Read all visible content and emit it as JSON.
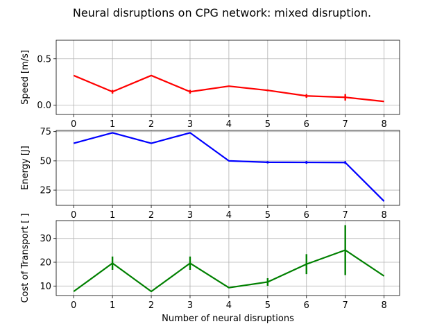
{
  "figure": {
    "title": "Neural disruptions on CPG network: mixed disruption."
  },
  "chart_data": [
    {
      "type": "line",
      "ylabel": "Speed [m/s]",
      "x": [
        0,
        1,
        2,
        3,
        4,
        5,
        6,
        7,
        8
      ],
      "xticks": [
        "0",
        "1",
        "2",
        "3",
        "4",
        "5",
        "6",
        "7",
        "8"
      ],
      "xlim": [
        -0.45,
        8.4
      ],
      "ylim": [
        -0.1,
        0.7
      ],
      "yticks": [
        0.0,
        0.5
      ],
      "ytick_labels": [
        "0.0",
        "0.5"
      ],
      "grid": true,
      "color": "#ff0000",
      "values": [
        0.32,
        0.145,
        0.32,
        0.145,
        0.205,
        0.16,
        0.1,
        0.085,
        0.04
      ],
      "errors": [
        0.0,
        0.02,
        0.0,
        0.02,
        0.0,
        0.01,
        0.02,
        0.035,
        0.0
      ]
    },
    {
      "type": "line",
      "ylabel": "Energy [J]",
      "x": [
        0,
        1,
        2,
        3,
        4,
        5,
        6,
        7,
        8
      ],
      "xticks": [
        "0",
        "1",
        "2",
        "3",
        "4",
        "5",
        "6",
        "7",
        "8"
      ],
      "xlim": [
        -0.45,
        8.4
      ],
      "ylim": [
        12,
        76
      ],
      "yticks": [
        25,
        50,
        75
      ],
      "ytick_labels": [
        "25",
        "50",
        "75"
      ],
      "grid": true,
      "color": "#0000ff",
      "values": [
        65,
        74,
        65,
        74,
        50,
        48.8,
        48.7,
        48.6,
        15.5
      ],
      "errors": [
        0,
        0,
        0,
        0,
        0,
        1,
        1.2,
        1.2,
        0
      ]
    },
    {
      "type": "line",
      "ylabel": "Cost of Transport [ ]",
      "xlabel": "Number of neural disruptions",
      "x": [
        0,
        1,
        2,
        3,
        4,
        5,
        6,
        7,
        8
      ],
      "xticks": [
        "0",
        "1",
        "2",
        "3",
        "4",
        "5",
        "6",
        "7",
        "8"
      ],
      "xlim": [
        -0.45,
        8.4
      ],
      "ylim": [
        6,
        37.5
      ],
      "yticks": [
        10,
        20,
        30
      ],
      "ytick_labels": [
        "10",
        "20",
        "30"
      ],
      "grid": true,
      "color": "#008000",
      "values": [
        7.7,
        19.6,
        7.7,
        19.6,
        9.3,
        11.7,
        19.2,
        25.1,
        14.2
      ],
      "errors": [
        0,
        2.8,
        0,
        2.8,
        0,
        1.6,
        4.2,
        10.5,
        0
      ]
    }
  ]
}
